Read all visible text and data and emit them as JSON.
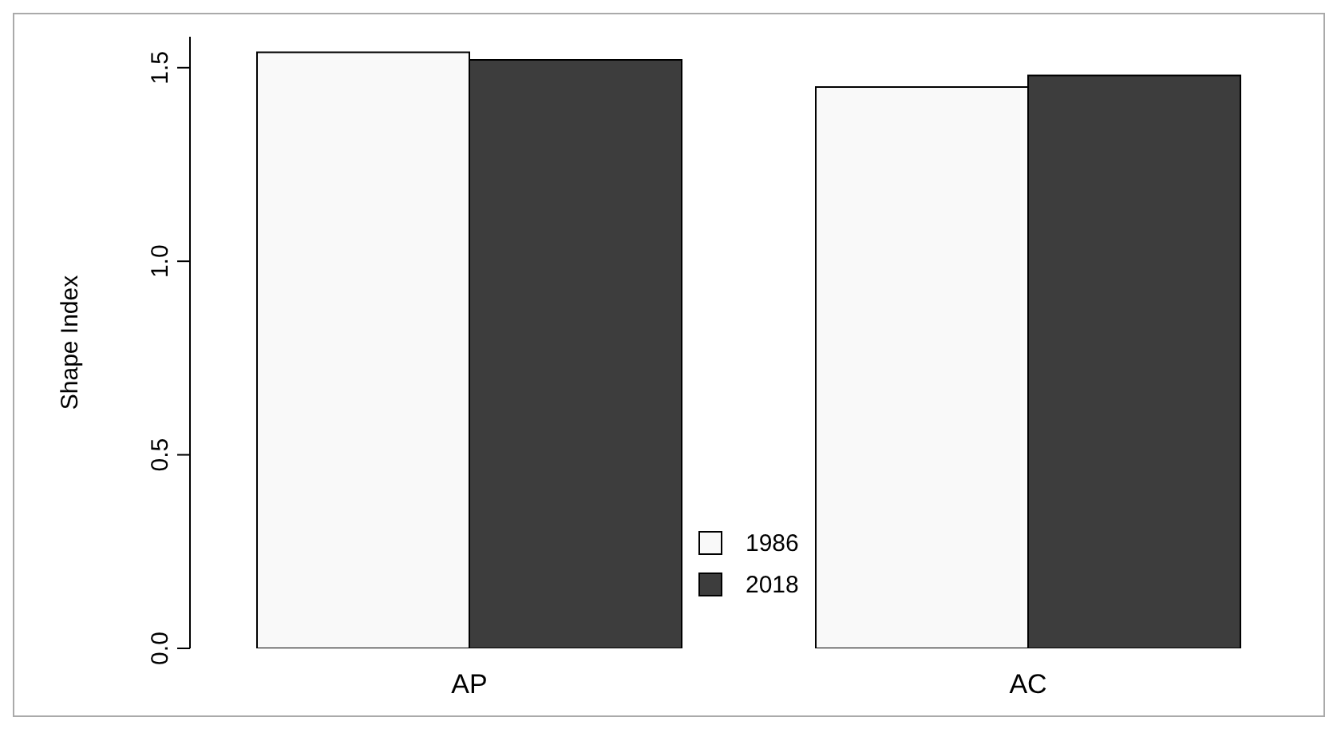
{
  "chart_data": {
    "type": "bar",
    "ylabel": "Shape Index",
    "categories": [
      "AP",
      "AC"
    ],
    "series": [
      {
        "name": "1986",
        "color": "#f9f9f9",
        "values": [
          1.54,
          1.45
        ]
      },
      {
        "name": "2018",
        "color": "#3d3d3d",
        "values": [
          1.52,
          1.48
        ]
      }
    ],
    "ylim": [
      0,
      1.58
    ],
    "yticks": [
      {
        "value": 0,
        "label": "0.0"
      },
      {
        "value": 0.5,
        "label": "0.5"
      },
      {
        "value": 1,
        "label": "1.0"
      },
      {
        "value": 1.5,
        "label": "1.5"
      }
    ],
    "legend": "bottom",
    "grid": false
  }
}
